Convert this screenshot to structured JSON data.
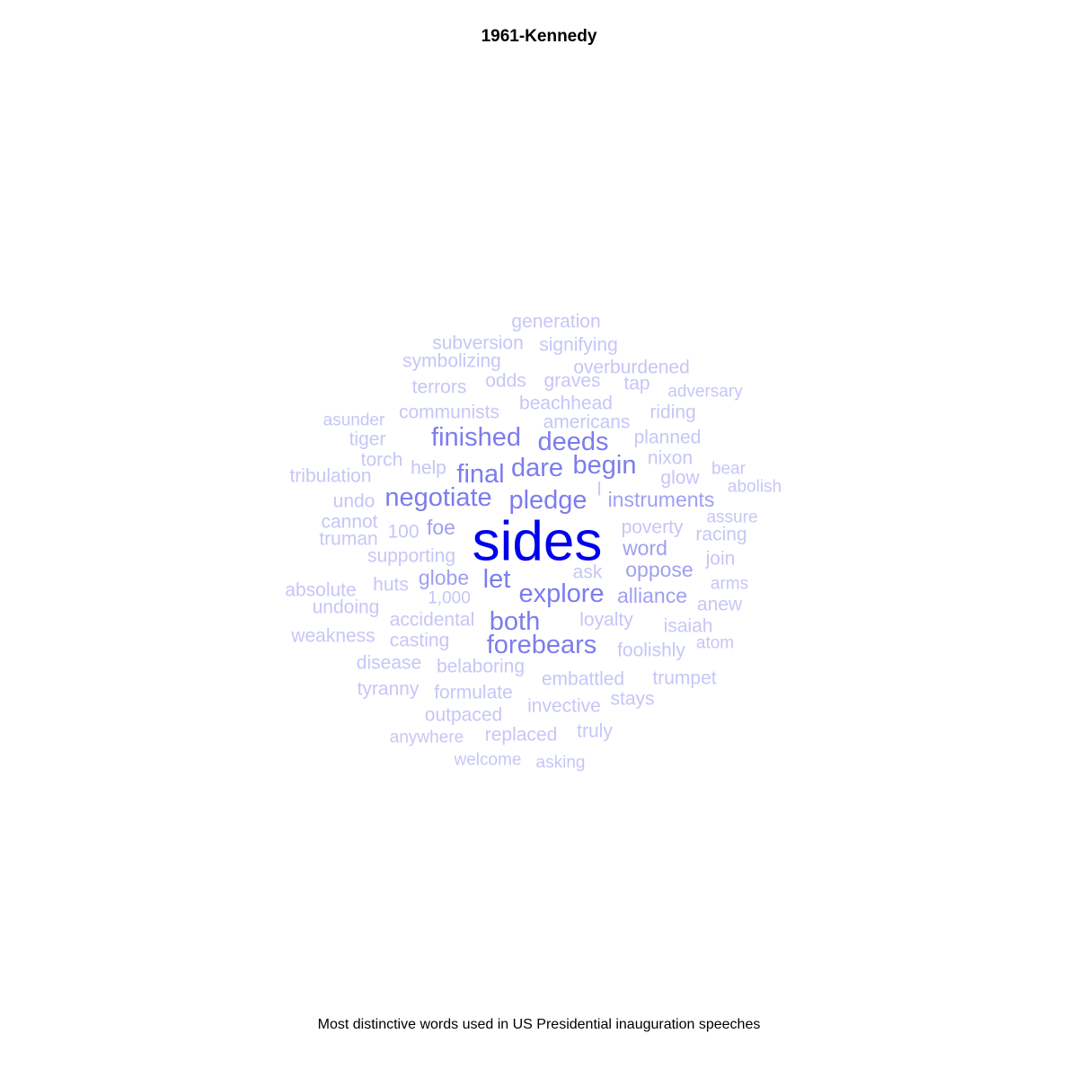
{
  "header": {
    "title": "1961-Kennedy"
  },
  "footer": {
    "caption": "Most distinctive words used in US Presidential inauguration speeches"
  },
  "colors": {
    "light": "#c6c6f7",
    "mid": "#9f9ff2",
    "strong": "#7c7cef",
    "max": "#0000ee"
  },
  "chart_data": {
    "type": "wordcloud",
    "title": "1961-Kennedy",
    "words": [
      {
        "word": "sides",
        "weight": 10
      },
      {
        "word": "finished",
        "weight": 4
      },
      {
        "word": "deeds",
        "weight": 4
      },
      {
        "word": "final",
        "weight": 4
      },
      {
        "word": "dare",
        "weight": 4
      },
      {
        "word": "begin",
        "weight": 4
      },
      {
        "word": "negotiate",
        "weight": 4
      },
      {
        "word": "pledge",
        "weight": 4
      },
      {
        "word": "let",
        "weight": 4
      },
      {
        "word": "explore",
        "weight": 4
      },
      {
        "word": "both",
        "weight": 4
      },
      {
        "word": "forebears",
        "weight": 4
      },
      {
        "word": "instruments",
        "weight": 3
      },
      {
        "word": "foe",
        "weight": 3
      },
      {
        "word": "globe",
        "weight": 3
      },
      {
        "word": "oppose",
        "weight": 3
      },
      {
        "word": "alliance",
        "weight": 3
      },
      {
        "word": "word",
        "weight": 3
      },
      {
        "word": "generation",
        "weight": 2
      },
      {
        "word": "subversion",
        "weight": 2
      },
      {
        "word": "signifying",
        "weight": 2
      },
      {
        "word": "symbolizing",
        "weight": 2
      },
      {
        "word": "overburdened",
        "weight": 2
      },
      {
        "word": "terrors",
        "weight": 2
      },
      {
        "word": "odds",
        "weight": 2
      },
      {
        "word": "graves",
        "weight": 2
      },
      {
        "word": "tap",
        "weight": 2
      },
      {
        "word": "adversary",
        "weight": 1
      },
      {
        "word": "beachhead",
        "weight": 2
      },
      {
        "word": "asunder",
        "weight": 1
      },
      {
        "word": "communists",
        "weight": 2
      },
      {
        "word": "americans",
        "weight": 2
      },
      {
        "word": "riding",
        "weight": 2
      },
      {
        "word": "tiger",
        "weight": 2
      },
      {
        "word": "planned",
        "weight": 2
      },
      {
        "word": "torch",
        "weight": 2
      },
      {
        "word": "nixon",
        "weight": 2
      },
      {
        "word": "tribulation",
        "weight": 2
      },
      {
        "word": "help",
        "weight": 2
      },
      {
        "word": "bear",
        "weight": 1
      },
      {
        "word": "glow",
        "weight": 2
      },
      {
        "word": "abolish",
        "weight": 1
      },
      {
        "word": "l",
        "weight": 2
      },
      {
        "word": "undo",
        "weight": 2
      },
      {
        "word": "cannot",
        "weight": 2
      },
      {
        "word": "assure",
        "weight": 1
      },
      {
        "word": "100",
        "weight": 2
      },
      {
        "word": "poverty",
        "weight": 2
      },
      {
        "word": "truman",
        "weight": 2
      },
      {
        "word": "racing",
        "weight": 2
      },
      {
        "word": "supporting",
        "weight": 2
      },
      {
        "word": "join",
        "weight": 2
      },
      {
        "word": "ask",
        "weight": 2
      },
      {
        "word": "absolute",
        "weight": 2
      },
      {
        "word": "huts",
        "weight": 2
      },
      {
        "word": "arms",
        "weight": 1
      },
      {
        "word": "1,000",
        "weight": 1
      },
      {
        "word": "undoing",
        "weight": 2
      },
      {
        "word": "anew",
        "weight": 2
      },
      {
        "word": "accidental",
        "weight": 2
      },
      {
        "word": "loyalty",
        "weight": 2
      },
      {
        "word": "isaiah",
        "weight": 2
      },
      {
        "word": "weakness",
        "weight": 2
      },
      {
        "word": "casting",
        "weight": 2
      },
      {
        "word": "atom",
        "weight": 1
      },
      {
        "word": "foolishly",
        "weight": 2
      },
      {
        "word": "disease",
        "weight": 2
      },
      {
        "word": "belaboring",
        "weight": 2
      },
      {
        "word": "embattled",
        "weight": 2
      },
      {
        "word": "trumpet",
        "weight": 2
      },
      {
        "word": "tyranny",
        "weight": 2
      },
      {
        "word": "formulate",
        "weight": 2
      },
      {
        "word": "stays",
        "weight": 2
      },
      {
        "word": "invective",
        "weight": 2
      },
      {
        "word": "outpaced",
        "weight": 2
      },
      {
        "word": "truly",
        "weight": 1
      },
      {
        "word": "anywhere",
        "weight": 1
      },
      {
        "word": "replaced",
        "weight": 2
      },
      {
        "word": "welcome",
        "weight": 1
      },
      {
        "word": "asking",
        "weight": 1
      }
    ]
  }
}
